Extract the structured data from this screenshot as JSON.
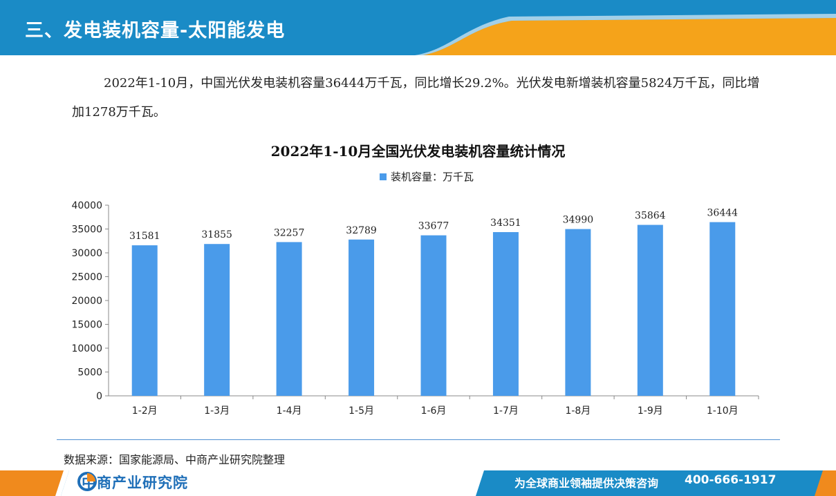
{
  "header": {
    "title": "三、发电装机容量-太阳能发电"
  },
  "paragraph": {
    "text": "2022年1-10月，中国光伏发电装机容量36444万千瓦，同比增长29.2%。光伏发电新增装机容量5824万千瓦，同比增加1278万千瓦。"
  },
  "source": {
    "text": "数据来源：国家能源局、中商产业研究院整理"
  },
  "footer": {
    "logo_text": "中商产业研究院",
    "slogan": "为全球商业领袖提供决策咨询",
    "phone": "400-666-1917"
  },
  "colors": {
    "header_blue": "#1A8BC6",
    "header_orange": "#F5A31A",
    "bar": "#4A9BEA",
    "footer_blue": "#1A8BC6",
    "footer_orange": "#F08A1D"
  },
  "chart_data": {
    "type": "bar",
    "title": "2022年1-10月全国光伏发电装机容量统计情况",
    "categories": [
      "1-2月",
      "1-3月",
      "1-4月",
      "1-5月",
      "1-6月",
      "1-7月",
      "1-8月",
      "1-9月",
      "1-10月"
    ],
    "series": [
      {
        "name": "装机容量：万千瓦",
        "values": [
          31581,
          31855,
          32257,
          32789,
          33677,
          34351,
          34990,
          35864,
          36444
        ]
      }
    ],
    "yticks": [
      0,
      5000,
      10000,
      15000,
      20000,
      25000,
      30000,
      35000,
      40000
    ],
    "ylim": [
      0,
      40000
    ],
    "xlabel": "",
    "ylabel": "",
    "grid": false,
    "legend": "top-center",
    "data_labels": true
  }
}
